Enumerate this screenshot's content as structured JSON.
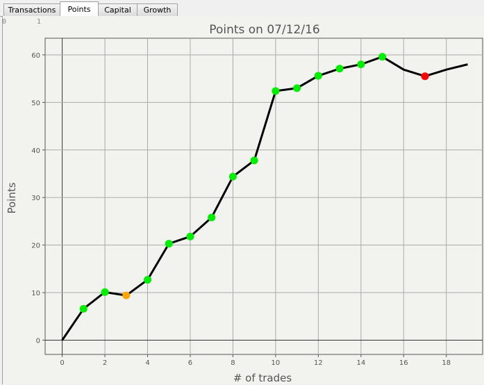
{
  "tabs": [
    {
      "label": "Transactions"
    },
    {
      "label": "Points",
      "active": true
    },
    {
      "label": "Capital"
    },
    {
      "label": "Growth"
    }
  ],
  "ruler": {
    "left": "0",
    "right": "1"
  },
  "chart_data": {
    "type": "line",
    "title": "Points on 07/12/16",
    "xlabel": "# of trades",
    "ylabel": "Points",
    "xlim": [
      -0.8,
      19.7
    ],
    "ylim": [
      -3,
      63.5
    ],
    "xticks": [
      0,
      2,
      4,
      6,
      8,
      10,
      12,
      14,
      16,
      18
    ],
    "yticks": [
      0,
      10,
      20,
      30,
      40,
      50,
      60
    ],
    "grid": true,
    "line_color": "#000000",
    "x": [
      0,
      1,
      2,
      3,
      4,
      5,
      6,
      7,
      8,
      9,
      10,
      11,
      12,
      13,
      14,
      15,
      16,
      17,
      18,
      19
    ],
    "y": [
      0,
      6.6,
      10.1,
      9.4,
      12.7,
      20.3,
      21.8,
      25.8,
      34.4,
      37.8,
      52.4,
      53,
      55.6,
      57.1,
      58,
      59.6,
      56.9,
      55.5,
      56.9,
      58
    ],
    "markers": [
      null,
      "#00ee00",
      "#00ee00",
      "#ffa500",
      "#00ee00",
      "#00ee00",
      "#00ee00",
      "#00ee00",
      "#00ee00",
      "#00ee00",
      "#00ee00",
      "#00ee00",
      "#00ee00",
      "#00ee00",
      "#00ee00",
      "#00ee00",
      null,
      "#ff0000",
      null,
      null
    ]
  }
}
